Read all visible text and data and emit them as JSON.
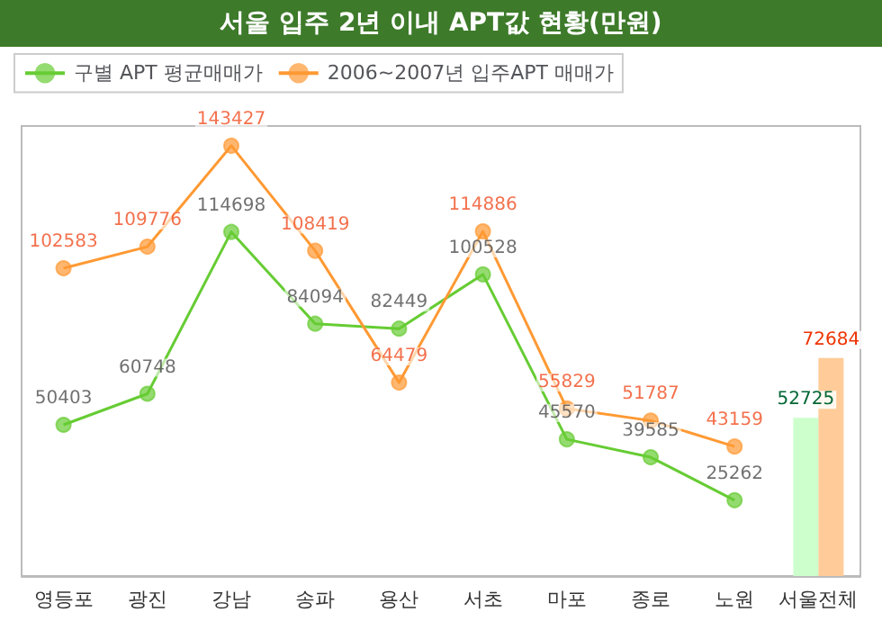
{
  "chart_data": {
    "type": "line",
    "title": "서울 입주 2년 이내 APT값 현황(만원)",
    "categories": [
      "영등포",
      "광진",
      "강남",
      "송파",
      "용산",
      "서초",
      "마포",
      "종로",
      "노원",
      "서울전체"
    ],
    "series": [
      {
        "name": "구별 APT 평균매매가",
        "color": "#66cc33",
        "values": [
          50403,
          60748,
          114698,
          84094,
          82449,
          100528,
          45570,
          39585,
          25262,
          null
        ]
      },
      {
        "name": "2006~2007년 입주APT 매매가",
        "color": "#ff9933",
        "values": [
          102583,
          109776,
          143427,
          108419,
          64479,
          114886,
          55829,
          51787,
          43159,
          null
        ]
      },
      {
        "type": "bar",
        "color": "#ccffcc",
        "values": [
          null,
          null,
          null,
          null,
          null,
          null,
          null,
          null,
          null,
          52725
        ]
      },
      {
        "type": "bar",
        "color": "#ffcc99",
        "values": [
          null,
          null,
          null,
          null,
          null,
          null,
          null,
          null,
          null,
          72684
        ]
      }
    ],
    "data_labels": true,
    "marker": "circle",
    "legend": "top left"
  }
}
